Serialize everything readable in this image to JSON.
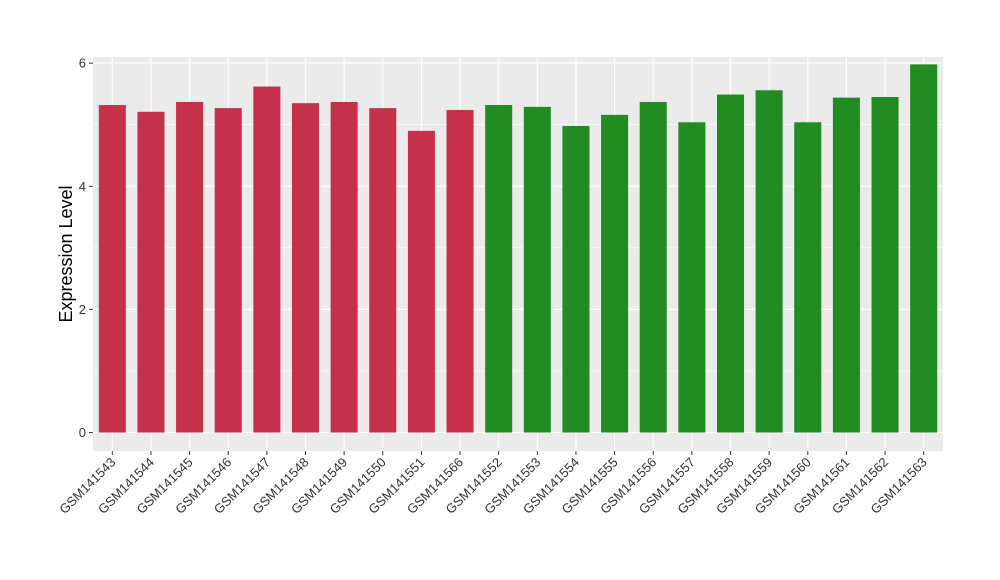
{
  "chart_data": {
    "type": "bar",
    "title": "",
    "xlabel": "",
    "ylabel": "Expression Level",
    "ylim": [
      -0.3,
      6.1
    ],
    "yticks": [
      0,
      2,
      4,
      6
    ],
    "grid": true,
    "legend": "none",
    "colors": {
      "panel_background": "#EBEBEB",
      "grid": "#FFFFFF",
      "group_a": "#C5314A",
      "group_b": "#228B22"
    },
    "categories": [
      "GSM141543",
      "GSM141544",
      "GSM141545",
      "GSM141546",
      "GSM141547",
      "GSM141548",
      "GSM141549",
      "GSM141550",
      "GSM141551",
      "GSM141566",
      "GSM141552",
      "GSM141553",
      "GSM141554",
      "GSM141555",
      "GSM141556",
      "GSM141557",
      "GSM141558",
      "GSM141559",
      "GSM141560",
      "GSM141561",
      "GSM141562",
      "GSM141563"
    ],
    "values": [
      5.32,
      5.21,
      5.37,
      5.27,
      5.62,
      5.35,
      5.37,
      5.27,
      4.9,
      5.24,
      5.32,
      5.29,
      4.98,
      5.16,
      5.37,
      5.04,
      5.49,
      5.56,
      5.04,
      5.44,
      5.45,
      5.98
    ],
    "groups": [
      "a",
      "a",
      "a",
      "a",
      "a",
      "a",
      "a",
      "a",
      "a",
      "a",
      "b",
      "b",
      "b",
      "b",
      "b",
      "b",
      "b",
      "b",
      "b",
      "b",
      "b",
      "b"
    ]
  }
}
